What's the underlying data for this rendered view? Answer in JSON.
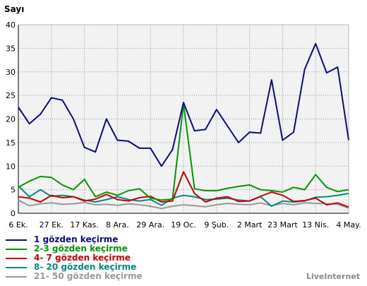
{
  "chart_data": {
    "type": "line",
    "ylabel": "Sayı",
    "ylim": [
      0,
      40
    ],
    "yticks": [
      0,
      5,
      10,
      15,
      20,
      25,
      30,
      35,
      40
    ],
    "x_tick_labels": [
      "6 Ek.",
      "27 Ek.",
      "17 Kas.",
      "8 Ara.",
      "29 Ara.",
      "19 Oc.",
      "9 Şub.",
      "2 Mart",
      "23 Mart",
      "13 Nis.",
      "4 May."
    ],
    "grid": true,
    "legend_position": "bottom-left",
    "series": [
      {
        "name": "1 gözden keçirme",
        "color": "#0a0a8c",
        "values": [
          22.5,
          19,
          21,
          24.5,
          24,
          20,
          14,
          13,
          20,
          15.5,
          15.3,
          13.8,
          13.8,
          10,
          13.5,
          23.5,
          17.5,
          17.8,
          22,
          18.5,
          15,
          17.2,
          17,
          28.3,
          15.5,
          17.2,
          30.5,
          36,
          29.8,
          31,
          15.5
        ]
      },
      {
        "name": "2-3 gözden keçirme",
        "color": "#009900",
        "values": [
          5.5,
          6.8,
          7.8,
          7.6,
          6,
          5,
          7.2,
          3.5,
          4.5,
          3.8,
          4.8,
          5.2,
          3.2,
          2.8,
          3,
          23.2,
          5.2,
          4.8,
          4.8,
          5.3,
          5.7,
          6,
          5,
          4.8,
          4.5,
          5.5,
          5,
          8.2,
          5.5,
          4.6,
          5
        ]
      },
      {
        "name": "4- 7 gözden keçirme",
        "color": "#cc0000",
        "values": [
          3.5,
          3.2,
          2.4,
          3.8,
          3.3,
          3.5,
          2.6,
          3,
          4,
          2.9,
          2.6,
          3.3,
          3.6,
          2.4,
          2.6,
          8.8,
          4.2,
          2.4,
          3.2,
          3.5,
          2.5,
          2.6,
          3.6,
          4.5,
          3.8,
          2.5,
          2.7,
          3.2,
          1.8,
          2.2,
          1.3
        ]
      },
      {
        "name": "8- 20 gözden keçirme",
        "color": "#008b8b",
        "values": [
          5.8,
          3.5,
          5,
          3.6,
          3.8,
          3.5,
          2.8,
          2.4,
          2.9,
          3.5,
          2.9,
          2.6,
          2.9,
          1.7,
          3.2,
          3.8,
          3.5,
          2.9,
          3,
          3.2,
          2.8,
          2.6,
          3.5,
          1.5,
          2.6,
          2.4,
          2.6,
          3.4,
          3.5,
          3.8,
          4.2
        ]
      },
      {
        "name": "21- 50 gözden keçirme",
        "color": "#999999",
        "values": [
          2.8,
          1.6,
          2,
          2.2,
          1.9,
          2,
          2.3,
          1.8,
          1.9,
          1.7,
          2,
          1.8,
          1.5,
          1,
          1.5,
          1.8,
          1.6,
          1.4,
          1.8,
          2.1,
          1.9,
          1.8,
          2.2,
          1.6,
          2.1,
          1.8,
          2.2,
          2.1,
          2,
          1.9,
          1.1
        ]
      }
    ]
  },
  "watermark": "LiveInternet"
}
